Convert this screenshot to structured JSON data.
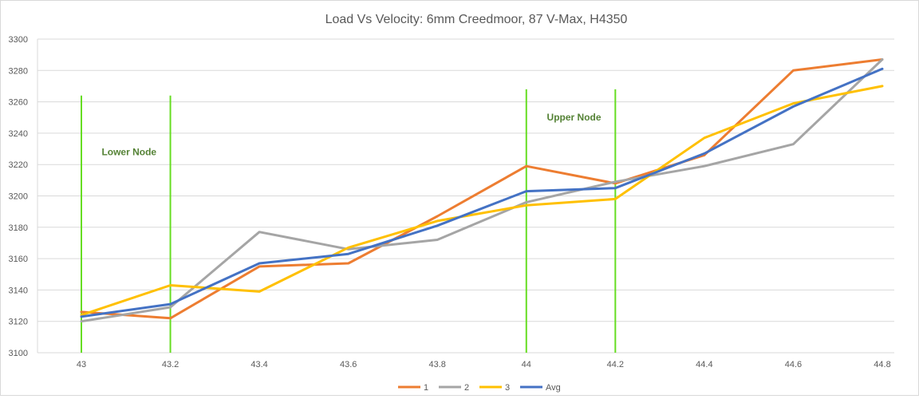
{
  "chart_data": {
    "type": "line",
    "title": "Load Vs Velocity: 6mm Creedmoor, 87 V-Max, H4350",
    "xlabel": "",
    "ylabel": "",
    "categories": [
      "43",
      "43.2",
      "43.4",
      "43.6",
      "43.8",
      "44",
      "44.2",
      "44.4",
      "44.6",
      "44.8"
    ],
    "ylim": [
      3100,
      3300
    ],
    "yticks": [
      3100,
      3120,
      3140,
      3160,
      3180,
      3200,
      3220,
      3240,
      3260,
      3280,
      3300
    ],
    "grid": "horizontal",
    "legend_position": "bottom",
    "series": [
      {
        "name": "1",
        "color": "#ed7d31",
        "values": [
          3126,
          3122,
          3155,
          3157,
          3187,
          3219,
          3208,
          3226,
          3280,
          3287
        ]
      },
      {
        "name": "2",
        "color": "#a5a5a5",
        "values": [
          3120,
          3129,
          3177,
          3166,
          3172,
          3196,
          3209,
          3219,
          3233,
          3287
        ]
      },
      {
        "name": "3",
        "color": "#ffc000",
        "values": [
          3124,
          3143,
          3139,
          3167,
          3184,
          3194,
          3198,
          3237,
          3259,
          3270
        ]
      },
      {
        "name": "Avg",
        "color": "#4472c4",
        "values": [
          3123,
          3131,
          3157,
          3163,
          3181,
          3203,
          3205,
          3227,
          3257,
          3281
        ]
      }
    ],
    "annotations": [
      {
        "label": "Lower Node",
        "color": "#548235",
        "line_color": "#66dd22",
        "x_start": 43.0,
        "x_end": 43.2,
        "y_top": 3264
      },
      {
        "label": "Upper Node",
        "color": "#548235",
        "line_color": "#66dd22",
        "x_start": 44.0,
        "x_end": 44.2,
        "y_top": 3268
      }
    ]
  }
}
